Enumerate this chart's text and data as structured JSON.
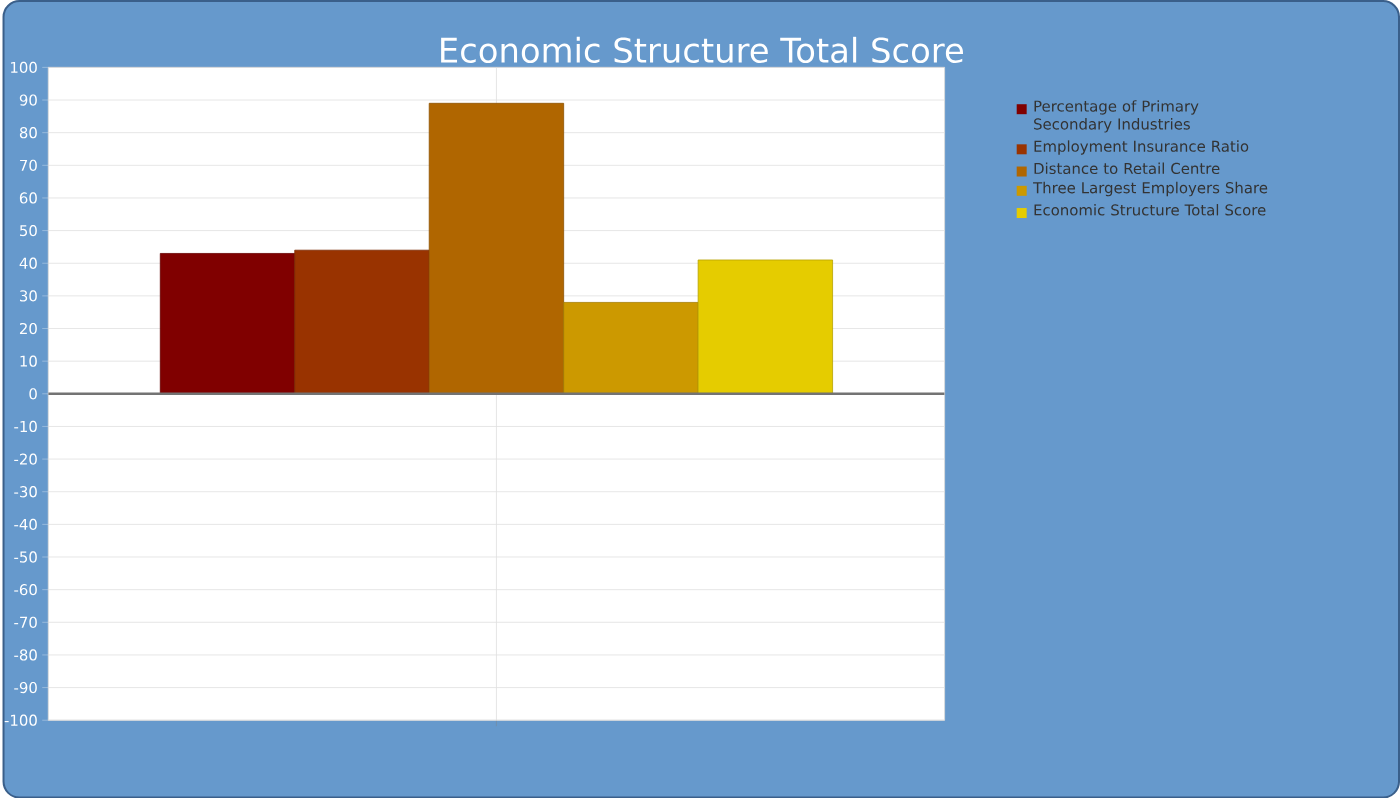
{
  "chart_data": {
    "type": "bar",
    "title": "Economic Structure Total Score",
    "categories": [
      null
    ],
    "series": [
      {
        "name": "Percentage of Primary Secondary Industries",
        "color": "#800000",
        "values": [
          43
        ]
      },
      {
        "name": "Employment Insurance Ratio",
        "color": "#993300",
        "values": [
          44
        ]
      },
      {
        "name": "Distance to Retail Centre",
        "color": "#b06600",
        "values": [
          89
        ]
      },
      {
        "name": "Three Largest Employers Share",
        "color": "#cc9900",
        "values": [
          28
        ]
      },
      {
        "name": "Economic Structure Total Score",
        "color": "#e5cc00",
        "values": [
          41
        ]
      }
    ],
    "ylim": [
      -100,
      100
    ],
    "yticks": [
      -100,
      -90,
      -80,
      -70,
      -60,
      -50,
      -40,
      -30,
      -20,
      -10,
      0,
      10,
      20,
      30,
      40,
      50,
      60,
      70,
      80,
      90,
      100
    ],
    "grid": true,
    "legend": "right"
  }
}
